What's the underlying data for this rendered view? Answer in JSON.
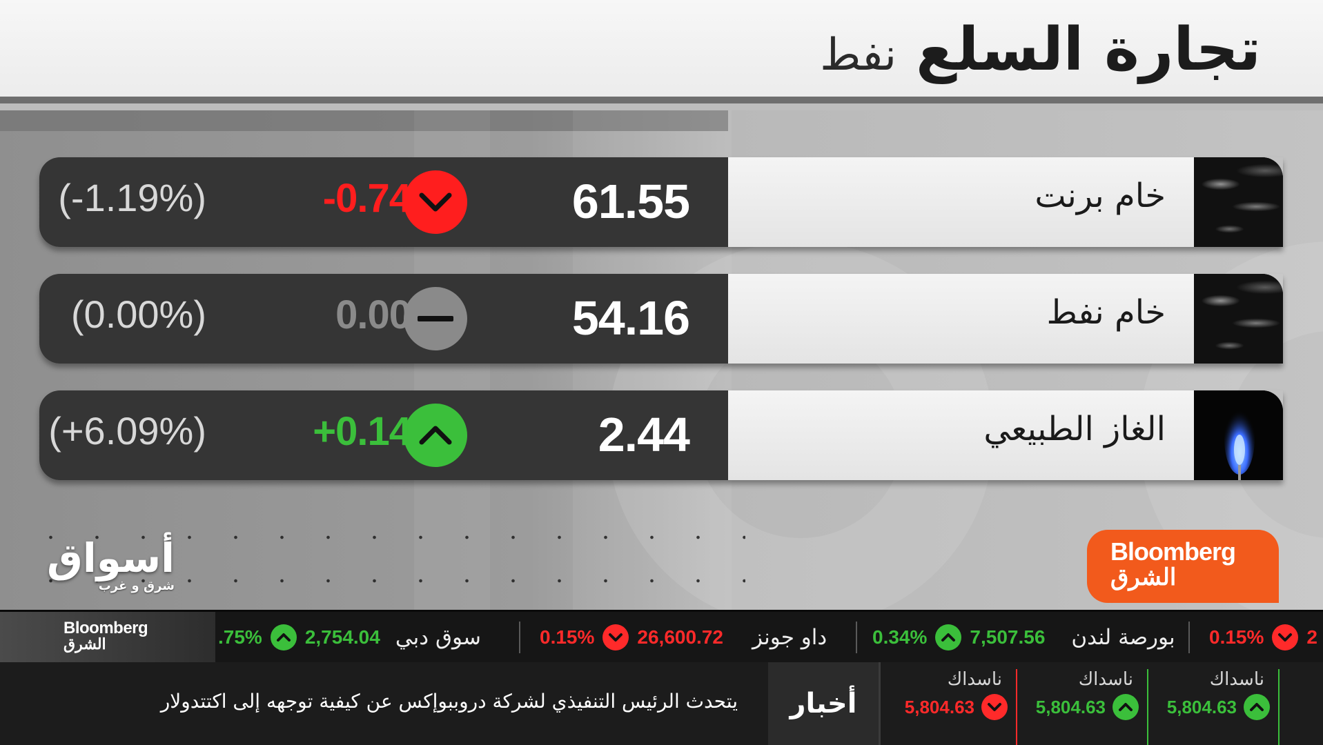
{
  "header": {
    "title": "تجارة السلع",
    "subtitle": "نفط"
  },
  "colors": {
    "down": "#ff1e1e",
    "up": "#3bbf3b",
    "neutral": "#8a8a8a",
    "brand_orange": "#f25a1c"
  },
  "commodities": [
    {
      "name": "خام برنت",
      "price": "61.55",
      "change": "-0.74",
      "pct": "(-1.19%)",
      "direction": "down",
      "icon": "oil-surface-image"
    },
    {
      "name": "خام نفط",
      "price": "54.16",
      "change": "0.00",
      "pct": "(0.00%)",
      "direction": "flat",
      "icon": "oil-surface-image"
    },
    {
      "name": "الغاز الطبيعي",
      "price": "2.44",
      "change": "+0.14",
      "pct": "(+6.09%)",
      "direction": "up",
      "icon": "gas-flame-image"
    }
  ],
  "logos": {
    "bloomberg_en": "Bloomberg",
    "bloomberg_ar": "الشرق",
    "aswaq_main": "أسواق",
    "aswaq_sub": "شرق و غرب"
  },
  "ticker": {
    "items": [
      {
        "name": "",
        "value": "",
        "pct": ".75%",
        "direction": "up"
      },
      {
        "name": "سوق دبي",
        "value": "2,754.04",
        "pct": "",
        "direction": "up"
      },
      {
        "name": "داو جونز",
        "value": "26,600.72",
        "pct": "0.15%",
        "direction": "down"
      },
      {
        "name": "بورصة لندن",
        "value": "7,507.56",
        "pct": "0.34%",
        "direction": "up"
      },
      {
        "name": "",
        "value": "2",
        "pct": "0.15%",
        "direction": "down"
      }
    ]
  },
  "news": {
    "label": "أخبار",
    "headline": "يتحدث الرئيس التنفيذي لشركة دروببوإكس عن كيفية توجهه إلى اكتتدولار",
    "cards": [
      {
        "name": "ناسداك",
        "value": "5,804.63",
        "direction": "down"
      },
      {
        "name": "ناسداك",
        "value": "5,804.63",
        "direction": "up"
      },
      {
        "name": "ناسداك",
        "value": "5,804.63",
        "direction": "up"
      }
    ]
  }
}
